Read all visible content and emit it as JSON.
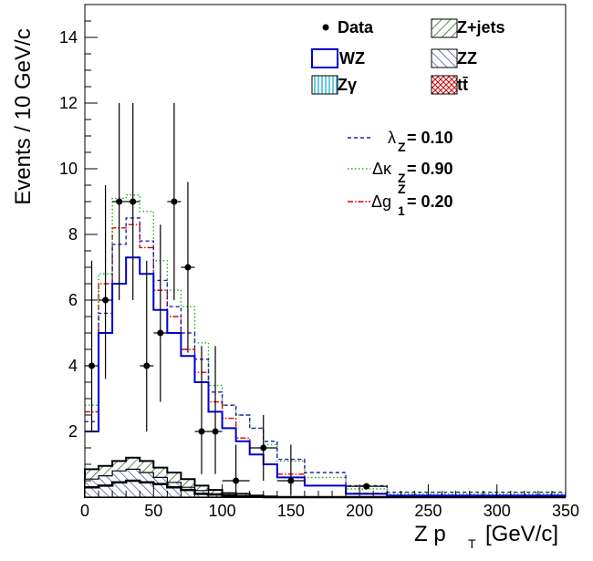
{
  "chart_data": {
    "type": "histogram",
    "xlabel": "Z p",
    "xlabel_sub": "T",
    "xlabel_unit": "[GeV/c]",
    "ylabel": "Events / 10 GeV/c",
    "xlim": [
      0,
      350
    ],
    "ylim": [
      0,
      15
    ],
    "x_ticks": [
      0,
      50,
      100,
      150,
      200,
      250,
      300,
      350
    ],
    "y_ticks": [
      2,
      4,
      6,
      8,
      10,
      12,
      14
    ],
    "bin_edges": [
      0,
      10,
      20,
      30,
      40,
      50,
      60,
      70,
      80,
      90,
      100,
      110,
      120,
      130,
      140,
      160,
      190,
      220,
      350
    ],
    "series": [
      {
        "name": "WZ",
        "color": "#0000cc",
        "style": "solid",
        "values": [
          2.0,
          5.0,
          6.5,
          7.3,
          6.8,
          5.7,
          5.0,
          4.3,
          3.5,
          2.6,
          2.1,
          1.7,
          1.3,
          1.0,
          0.6,
          0.35,
          0.1,
          0.05
        ]
      },
      {
        "name": "λZ = 0.10",
        "color": "#2222aa",
        "style": "dashed",
        "values": [
          2.3,
          5.6,
          7.7,
          8.5,
          7.8,
          6.6,
          5.8,
          5.0,
          4.2,
          3.2,
          2.8,
          2.5,
          2.1,
          1.7,
          1.15,
          0.75,
          0.35,
          0.15
        ]
      },
      {
        "name": "ΔκZ = 0.90",
        "color": "#22aa22",
        "style": "dotted",
        "values": [
          2.8,
          6.8,
          9.1,
          9.2,
          8.7,
          7.2,
          6.3,
          5.8,
          4.7,
          3.4,
          2.8,
          2.5,
          2.1,
          1.6,
          1.1,
          0.6,
          0.25,
          0.1
        ]
      },
      {
        "name": "Δg1Z = 0.20",
        "color": "#dd0000",
        "style": "dashdot",
        "values": [
          2.6,
          6.5,
          8.2,
          8.3,
          7.6,
          6.3,
          5.5,
          4.5,
          3.8,
          2.9,
          2.4,
          1.8,
          1.3,
          1.0,
          0.7,
          0.35,
          0.12,
          0.05
        ]
      }
    ],
    "backgrounds": {
      "ZZ": [
        0.55,
        0.65,
        0.8,
        0.85,
        0.75,
        0.6,
        0.45,
        0.3,
        0.2,
        0.1,
        0.05,
        0.02,
        0.01,
        0.0,
        0.0,
        0.0,
        0.0,
        0.0
      ],
      "Z+jets_total": [
        0.85,
        0.95,
        1.1,
        1.2,
        1.1,
        0.9,
        0.75,
        0.55,
        0.35,
        0.22,
        0.12,
        0.1,
        0.05,
        0.02,
        0.0,
        0.0,
        0.0,
        0.0
      ],
      "ttbar_total": [
        0.3,
        0.35,
        0.45,
        0.5,
        0.45,
        0.4,
        0.3,
        0.22,
        0.1,
        0.08,
        0.05,
        0.02,
        0.01,
        0.0,
        0.0,
        0.0,
        0.0,
        0.0
      ]
    },
    "data_points": {
      "name": "Data",
      "x": [
        5,
        15,
        25,
        35,
        45,
        55,
        65,
        75,
        85,
        95,
        110,
        130,
        150,
        205
      ],
      "xerr": [
        5,
        5,
        5,
        5,
        5,
        5,
        5,
        5,
        5,
        5,
        10,
        10,
        10,
        15
      ],
      "y": [
        4,
        6,
        9,
        9,
        4,
        5,
        9,
        7,
        2,
        2,
        0.5,
        1.5,
        0.5,
        0.33
      ],
      "yerr_up": [
        3.2,
        3.5,
        3.0,
        3.0,
        3.2,
        3.3,
        3.0,
        2.6,
        2.6,
        2.6,
        1.1,
        1.0,
        1.1,
        0.0
      ],
      "yerr_down": [
        2.0,
        2.4,
        3.0,
        3.0,
        2.0,
        2.1,
        3.0,
        2.6,
        1.3,
        1.3,
        0.4,
        1.0,
        0.4,
        0.0
      ]
    },
    "legend": {
      "placement": "top-right",
      "entries": [
        {
          "label": "Data",
          "symbol": "marker"
        },
        {
          "label": "Z+jets",
          "symbol": "green-hatch"
        },
        {
          "label": "WZ",
          "symbol": "blue-box"
        },
        {
          "label": "ZZ",
          "symbol": "blue-hatch"
        },
        {
          "label": "Zγ",
          "symbol": "cyan-vertical-hatch"
        },
        {
          "label": "tt̄",
          "symbol": "red-cross-hatch"
        }
      ],
      "aTGC": [
        {
          "label": "λZ = 0.10",
          "symbol_latin": "λ",
          "sub": "Z",
          "rest": " = 0.10"
        },
        {
          "label": "ΔκZ = 0.90",
          "symbol_latin": "Δκ",
          "sub": "Z",
          "rest": " = 0.90"
        },
        {
          "label": "Δg1Z = 0.20",
          "symbol_latin": "Δg",
          "sub": "1",
          "sup": "Z",
          "rest": " = 0.20"
        }
      ]
    }
  }
}
